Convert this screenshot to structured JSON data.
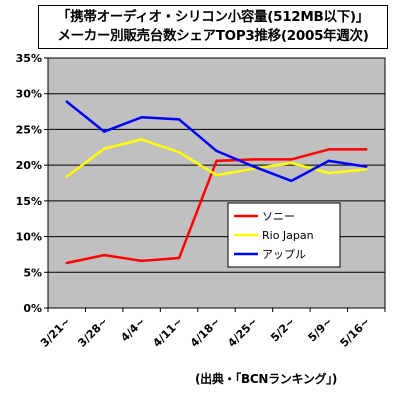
{
  "title": {
    "line1": "「携帯オーディオ・シリコン小容量(512MB以下)」",
    "line2": "メーカー別販売台数シェアTOP3推移(2005年週次)"
  },
  "source": "(出典・「BCNランキング」)",
  "chart_data": {
    "type": "line",
    "categories": [
      "3/21~",
      "3/28~",
      "4/4~",
      "4/11~",
      "4/18~",
      "4/25~",
      "5/2~",
      "5/9~",
      "5/16~"
    ],
    "ylim": [
      0,
      35
    ],
    "ytick_labels": [
      "0%",
      "5%",
      "10%",
      "15%",
      "20%",
      "25%",
      "30%",
      "35%"
    ],
    "grid": true,
    "legend_position": "lower-right",
    "plot_background": "#c0c0c0",
    "series": [
      {
        "name": "ソニー",
        "color": "#ff0000",
        "values": [
          6.3,
          7.4,
          6.6,
          7.0,
          20.6,
          20.8,
          20.8,
          22.2,
          22.2
        ]
      },
      {
        "name": "Rio Japan",
        "color": "#ffff00",
        "values": [
          18.4,
          22.3,
          23.6,
          21.8,
          18.6,
          19.5,
          20.3,
          18.9,
          19.4
        ]
      },
      {
        "name": "アップル",
        "color": "#0000ff",
        "values": [
          28.9,
          24.7,
          26.7,
          26.4,
          22.0,
          19.8,
          17.8,
          20.6,
          19.8
        ]
      }
    ]
  }
}
